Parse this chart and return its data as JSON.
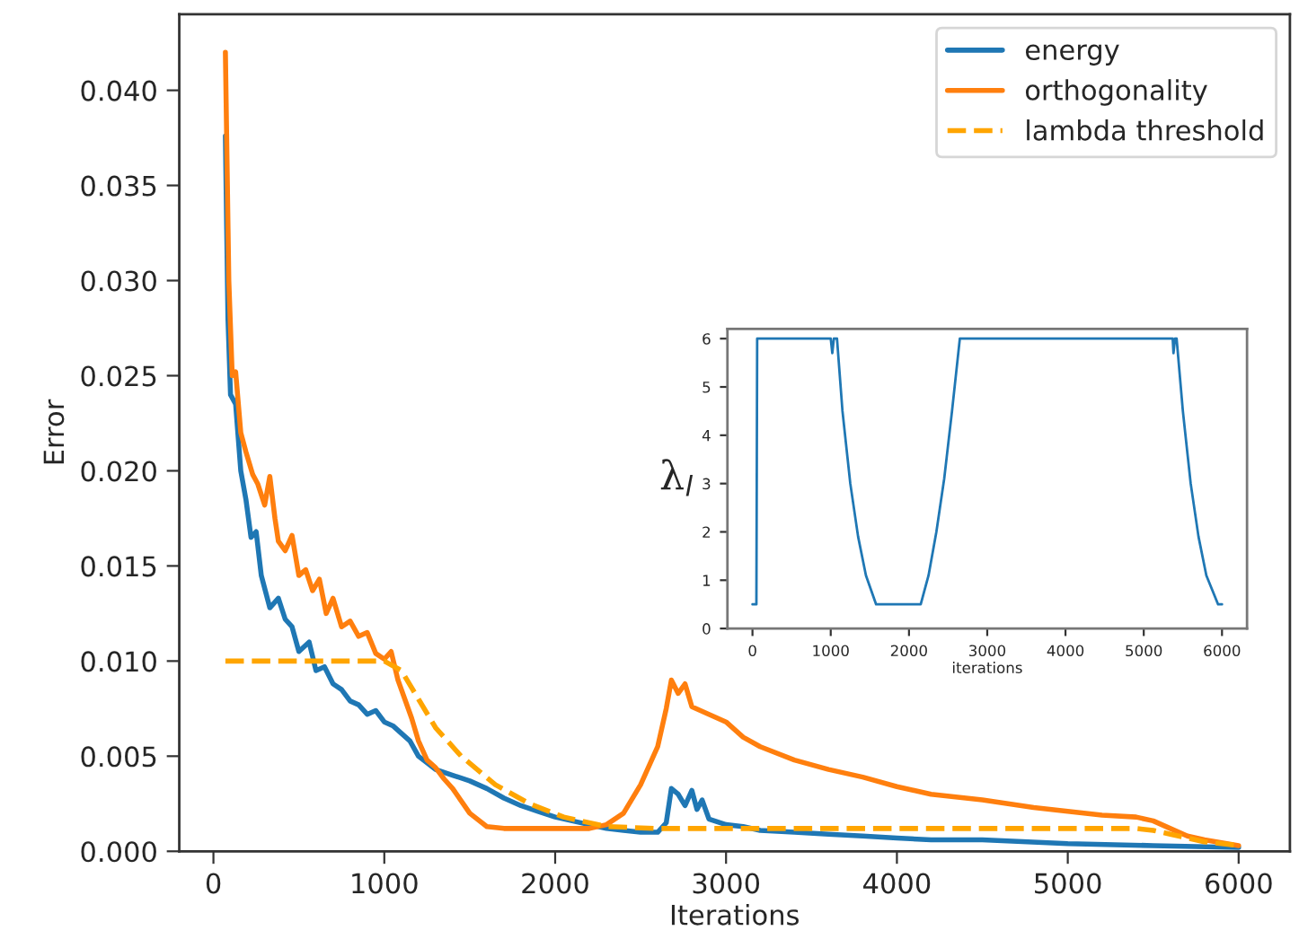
{
  "chart_data": [
    {
      "type": "line",
      "xlabel": "Iterations",
      "ylabel": "Error",
      "xlim": [
        -200,
        6300
      ],
      "ylim": [
        0,
        0.044
      ],
      "xticks": [
        0,
        1000,
        2000,
        3000,
        4000,
        5000,
        6000
      ],
      "yticks": [
        {
          "value": 0,
          "label": "0.000"
        },
        {
          "value": 0.005,
          "label": "0.005"
        },
        {
          "value": 0.01,
          "label": "0.010"
        },
        {
          "value": 0.015,
          "label": "0.015"
        },
        {
          "value": 0.02,
          "label": "0.020"
        },
        {
          "value": 0.025,
          "label": "0.025"
        },
        {
          "value": 0.03,
          "label": "0.030"
        },
        {
          "value": 0.035,
          "label": "0.035"
        },
        {
          "value": 0.04,
          "label": "0.040"
        }
      ],
      "legend": "top right",
      "grid": false,
      "series": [
        {
          "name": "energy",
          "color": "#1f77b4",
          "line_style": "solid",
          "x": [
            70,
            85,
            100,
            130,
            160,
            190,
            220,
            250,
            280,
            330,
            380,
            420,
            460,
            500,
            560,
            600,
            650,
            700,
            750,
            800,
            850,
            900,
            950,
            1000,
            1050,
            1100,
            1150,
            1200,
            1300,
            1400,
            1500,
            1600,
            1700,
            1800,
            1900,
            2000,
            2100,
            2200,
            2300,
            2400,
            2500,
            2600,
            2650,
            2680,
            2720,
            2760,
            2800,
            2830,
            2860,
            2900,
            3000,
            3100,
            3200,
            3400,
            3600,
            3800,
            4000,
            4200,
            4500,
            5000,
            5500,
            6000
          ],
          "values": [
            0.0376,
            0.028,
            0.024,
            0.0235,
            0.02,
            0.0185,
            0.0165,
            0.0168,
            0.0145,
            0.0128,
            0.0133,
            0.0122,
            0.0118,
            0.0105,
            0.011,
            0.0095,
            0.0097,
            0.0088,
            0.0085,
            0.0079,
            0.0077,
            0.0072,
            0.0074,
            0.0068,
            0.0066,
            0.0062,
            0.0058,
            0.005,
            0.0043,
            0.004,
            0.0037,
            0.0033,
            0.0028,
            0.0024,
            0.0021,
            0.0018,
            0.0016,
            0.0014,
            0.0012,
            0.0011,
            0.001,
            0.001,
            0.0015,
            0.0033,
            0.003,
            0.0024,
            0.0032,
            0.0022,
            0.0027,
            0.0017,
            0.0014,
            0.0013,
            0.0011,
            0.001,
            0.0009,
            0.0008,
            0.0007,
            0.0006,
            0.0006,
            0.0004,
            0.0003,
            0.0002
          ]
        },
        {
          "name": "orthogonality",
          "color": "#ff7f0e",
          "line_style": "solid",
          "x": [
            70,
            80,
            90,
            110,
            130,
            160,
            190,
            230,
            260,
            300,
            330,
            360,
            380,
            420,
            460,
            500,
            540,
            580,
            620,
            660,
            700,
            750,
            800,
            850,
            900,
            950,
            1000,
            1040,
            1080,
            1120,
            1160,
            1200,
            1250,
            1300,
            1350,
            1400,
            1500,
            1600,
            1700,
            1800,
            2000,
            2200,
            2300,
            2400,
            2500,
            2600,
            2650,
            2680,
            2720,
            2760,
            2800,
            2900,
            3000,
            3100,
            3200,
            3400,
            3600,
            3800,
            4000,
            4200,
            4500,
            4800,
            5000,
            5200,
            5400,
            5500,
            5600,
            5700,
            5800,
            6000
          ],
          "values": [
            0.042,
            0.036,
            0.03,
            0.025,
            0.0252,
            0.022,
            0.021,
            0.0198,
            0.0193,
            0.0182,
            0.0197,
            0.0175,
            0.0163,
            0.0158,
            0.0166,
            0.0145,
            0.0148,
            0.0137,
            0.0143,
            0.0125,
            0.0133,
            0.0118,
            0.0121,
            0.0113,
            0.0115,
            0.0104,
            0.0101,
            0.0105,
            0.009,
            0.008,
            0.007,
            0.0058,
            0.0048,
            0.0044,
            0.0038,
            0.0033,
            0.002,
            0.0013,
            0.0012,
            0.0012,
            0.0012,
            0.0012,
            0.0014,
            0.002,
            0.0035,
            0.0055,
            0.0075,
            0.009,
            0.0083,
            0.0088,
            0.0076,
            0.0072,
            0.0068,
            0.006,
            0.0055,
            0.0048,
            0.0043,
            0.0039,
            0.0034,
            0.003,
            0.0027,
            0.0023,
            0.0021,
            0.0019,
            0.0018,
            0.0016,
            0.0012,
            0.0008,
            0.0006,
            0.0003
          ]
        },
        {
          "name": "lambda threshold",
          "color": "#ffa500",
          "line_style": "dashed",
          "x": [
            70,
            1000,
            1100,
            1200,
            1300,
            1450,
            1650,
            1850,
            2050,
            2300,
            2600,
            5400,
            5500,
            5600,
            5700,
            5800,
            5900,
            6000
          ],
          "values": [
            0.01,
            0.01,
            0.0095,
            0.008,
            0.0065,
            0.005,
            0.0035,
            0.0025,
            0.0018,
            0.0013,
            0.0012,
            0.0012,
            0.0011,
            0.0009,
            0.0007,
            0.0005,
            0.0004,
            0.0003
          ]
        }
      ]
    },
    {
      "type": "line",
      "xlabel": "iterations",
      "ylabel": "λ$_{l}$",
      "xlim": [
        -320,
        6320
      ],
      "ylim": [
        0,
        6.2
      ],
      "xticks": [
        0,
        1000,
        2000,
        3000,
        4000,
        5000,
        6000
      ],
      "yticks": [
        0,
        1,
        2,
        3,
        4,
        5,
        6
      ],
      "grid": false,
      "series": [
        {
          "color": "#1f77b4",
          "line_style": "solid",
          "x": [
            0,
            50,
            60,
            1000,
            1020,
            1040,
            1080,
            1150,
            1250,
            1350,
            1450,
            1580,
            2150,
            2250,
            2350,
            2450,
            2550,
            2650,
            5370,
            5380,
            5400,
            5420,
            5500,
            5600,
            5700,
            5800,
            5950,
            6000
          ],
          "values": [
            0.5,
            0.5,
            6,
            6,
            5.7,
            6,
            6,
            4.5,
            3,
            1.9,
            1.1,
            0.5,
            0.5,
            1.1,
            2,
            3.1,
            4.5,
            6,
            6,
            5.7,
            6,
            6,
            4.5,
            3,
            1.9,
            1.1,
            0.5,
            0.5
          ]
        }
      ]
    }
  ]
}
